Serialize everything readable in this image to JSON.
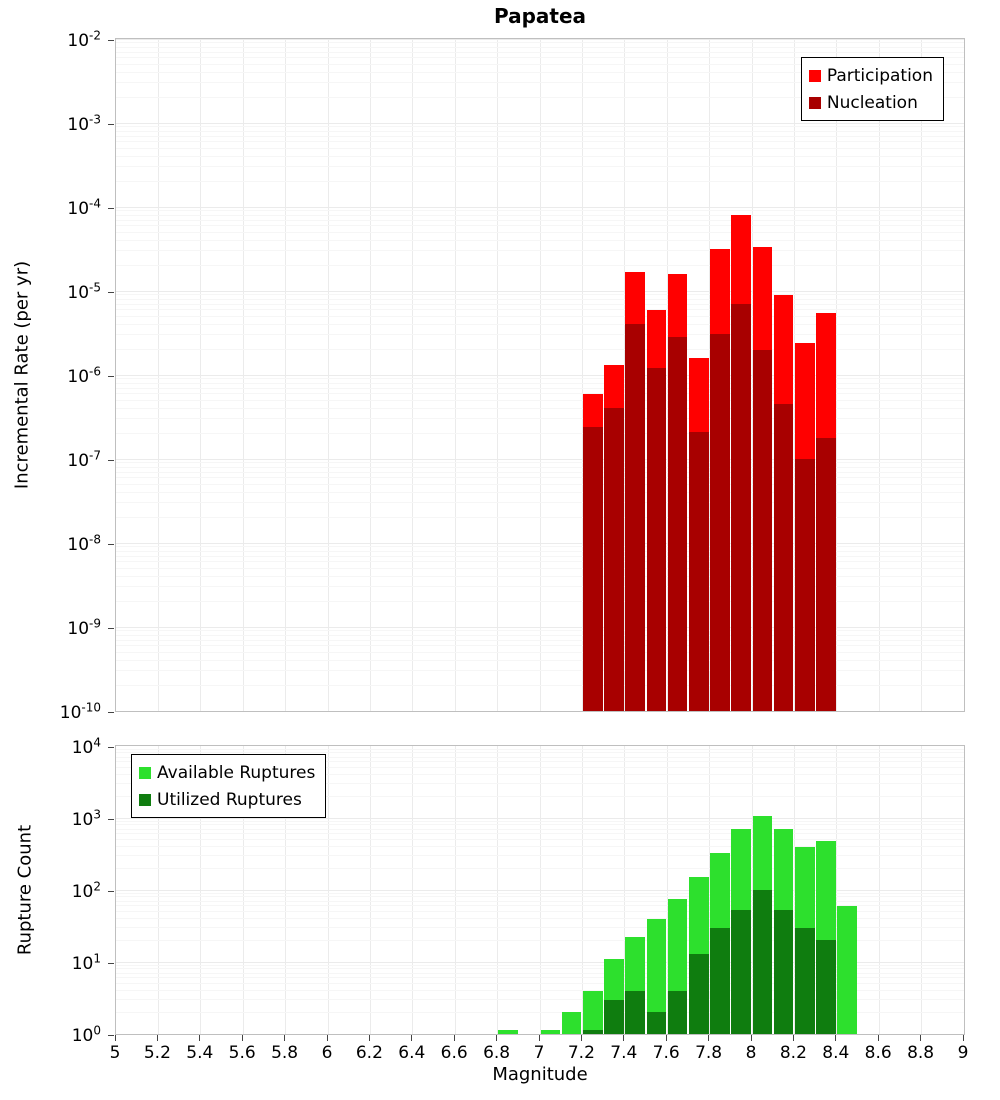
{
  "title": "Papatea",
  "xlabel": "Magnitude",
  "x_ticks": [
    "5",
    "5.2",
    "5.4",
    "5.6",
    "5.8",
    "6",
    "6.2",
    "6.4",
    "6.6",
    "6.8",
    "7",
    "7.2",
    "7.4",
    "7.6",
    "7.8",
    "8",
    "8.2",
    "8.4",
    "8.6",
    "8.8",
    "9"
  ],
  "colors": {
    "participation": "#ff0000",
    "nucleation": "#a80000",
    "available_ruptures": "#2de02d",
    "utilized_ruptures": "#0f7d0f",
    "grid_major": "#ebebeb",
    "grid_minor": "#f6f6f6"
  },
  "top_chart": {
    "ylabel": "Incremental Rate (per yr)",
    "legend": [
      {
        "label": "Participation"
      },
      {
        "label": "Nucleation"
      }
    ]
  },
  "bottom_chart": {
    "ylabel": "Rupture Count",
    "legend": [
      {
        "label": "Available Ruptures"
      },
      {
        "label": "Utilized Ruptures"
      }
    ]
  },
  "chart_data": [
    {
      "type": "bar",
      "title": "Papatea",
      "xlabel": "Magnitude",
      "ylabel": "Incremental Rate (per yr)",
      "x_range": [
        5,
        9
      ],
      "y_scale": "log",
      "y_range": [
        1e-10,
        0.01
      ],
      "y_tick_exponents": [
        -2,
        -3,
        -4,
        -5,
        -6,
        -7,
        -8,
        -9,
        -10
      ],
      "bin_width": 0.1,
      "grid": true,
      "legend_position": "top-right",
      "series": [
        {
          "name": "Participation",
          "color": "#ff0000",
          "bin_start": [
            7.2,
            7.3,
            7.4,
            7.5,
            7.6,
            7.7,
            7.8,
            7.9,
            8.0,
            8.1,
            8.2,
            8.3
          ],
          "values": [
            6e-07,
            1.3e-06,
            1.7e-05,
            6e-06,
            1.6e-05,
            1.6e-06,
            3.2e-05,
            8e-05,
            3.3e-05,
            9e-06,
            2.4e-06,
            5.5e-06
          ]
        },
        {
          "name": "Nucleation",
          "color": "#a80000",
          "bin_start": [
            7.2,
            7.3,
            7.4,
            7.5,
            7.6,
            7.7,
            7.8,
            7.9,
            8.0,
            8.1,
            8.2,
            8.3
          ],
          "values": [
            2.4e-07,
            4e-07,
            4e-06,
            1.2e-06,
            2.8e-06,
            2.1e-07,
            3.1e-06,
            7e-06,
            2e-06,
            4.5e-07,
            1e-07,
            1.8e-07
          ]
        }
      ]
    },
    {
      "type": "bar",
      "title": "",
      "xlabel": "Magnitude",
      "ylabel": "Rupture Count",
      "x_range": [
        5,
        9
      ],
      "y_scale": "log",
      "y_range": [
        1,
        10000
      ],
      "y_tick_exponents": [
        4,
        3,
        2,
        1,
        0
      ],
      "bin_width": 0.1,
      "grid": true,
      "legend_position": "top-left",
      "series": [
        {
          "name": "Available Ruptures",
          "color": "#2de02d",
          "bin_start": [
            6.8,
            7.0,
            7.1,
            7.2,
            7.3,
            7.4,
            7.5,
            7.6,
            7.7,
            7.8,
            7.9,
            8.0,
            8.1,
            8.2,
            8.3,
            8.4
          ],
          "values": [
            1,
            1,
            2,
            4,
            11,
            22,
            40,
            75,
            150,
            330,
            700,
            1050,
            700,
            400,
            480,
            60
          ]
        },
        {
          "name": "Utilized Ruptures",
          "color": "#0f7d0f",
          "bin_start": [
            7.2,
            7.3,
            7.4,
            7.5,
            7.6,
            7.7,
            7.8,
            7.9,
            8.0,
            8.1,
            8.2,
            8.3
          ],
          "values": [
            1,
            3,
            4,
            2,
            4,
            13,
            30,
            52,
            100,
            52,
            30,
            20
          ]
        }
      ]
    }
  ]
}
